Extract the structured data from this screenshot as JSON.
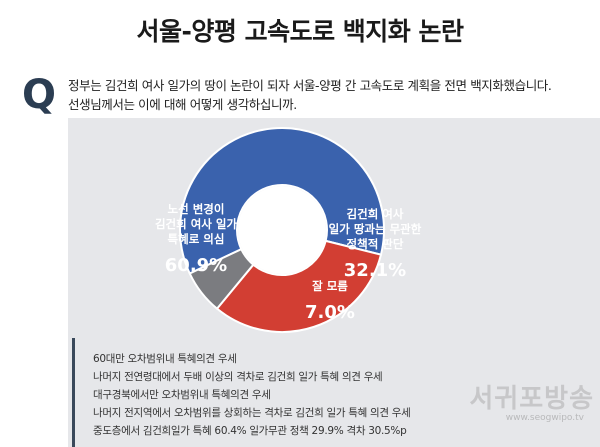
{
  "title": "서울-양평 고속도로 백지화 논란",
  "question": {
    "mark": "Q",
    "line1": "정부는 김건희 여사 일가의 땅이 논란이 되자 서울-양평 간 고속도로 계획을 전면 백지화했습니다.",
    "line2": "선생님께서는 이에 대해 어떻게 생각하십니까."
  },
  "chart_data": {
    "type": "pie",
    "donut": true,
    "slices": [
      {
        "label_lines": [
          "노선 변경이",
          "김건희 여사 일가",
          "특혜로 의심"
        ],
        "value": 60.9,
        "value_text": "60.9%",
        "color": "#3a62ad"
      },
      {
        "label_lines": [
          "김건희 여사",
          "일가 땅과는 무관한",
          "정책적 판단"
        ],
        "value": 32.1,
        "value_text": "32.1%",
        "color": "#d23e33"
      },
      {
        "label_lines": [
          "잘 모름"
        ],
        "value": 7.0,
        "value_text": "7.0%",
        "color": "#7b7c80"
      }
    ]
  },
  "notes": [
    "60대만 오차범위내 특혜의견 우세",
    "나머지 전연령대에서 두배 이상의 격차로 김건희 일가 특혜 의견 우세",
    "대구경북에서만 오차범위내 특혜의견 우세",
    "나머지 전지역에서 오차범위를 상회하는 격차로 김건희 일가 특혜 의견 우세",
    "중도층에서 김건희일가 특혜 60.4%  일가무관 정책 29.9%  격차 30.5%p"
  ],
  "watermark": {
    "text": "서귀포방송",
    "url": "www.seogwipo.tv"
  }
}
